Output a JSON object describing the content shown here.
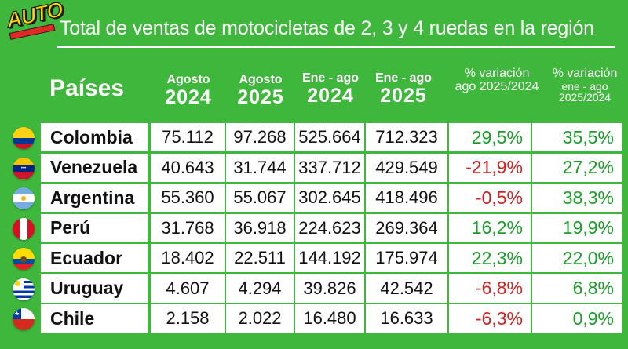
{
  "logo": {
    "text": "AUTO"
  },
  "title": "Total de ventas de motocicletas de 2, 3 y 4 ruedas en la región",
  "columns": {
    "paises": "Países",
    "agosto2024": {
      "line1": "Agosto",
      "line2": "2024"
    },
    "agosto2025": {
      "line1": "Agosto",
      "line2": "2025"
    },
    "eneago2024": {
      "line1": "Ene - ago",
      "line2": "2024"
    },
    "eneago2025": {
      "line1": "Ene - ago",
      "line2": "2025"
    },
    "var_ago": {
      "line1": "% variación",
      "line2": "ago 2025/2024"
    },
    "var_eneago": {
      "line1": "% variación",
      "line2": "ene - ago",
      "line3": "2025/2024"
    }
  },
  "colors": {
    "background": "#3fb63c",
    "positive": "#1b9e2a",
    "negative": "#d21f1f"
  },
  "chart_data": {
    "type": "table",
    "title": "Total de ventas de motocicletas de 2, 3 y 4 ruedas en la región",
    "headers": [
      "Países",
      "Agosto 2024",
      "Agosto 2025",
      "Ene - ago 2024",
      "Ene - ago 2025",
      "% variación ago 2025/2024",
      "% variación ene - ago 2025/2024"
    ],
    "rows": [
      {
        "pais": "Colombia",
        "flag": "colombia-flag",
        "ago2024": "75.112",
        "ago2025": "97.268",
        "ene2024": "525.664",
        "ene2025": "712.323",
        "var_ago": "29,5%",
        "var_ene": "35,5%"
      },
      {
        "pais": "Venezuela",
        "flag": "venezuela-flag",
        "ago2024": "40.643",
        "ago2025": "31.744",
        "ene2024": "337.712",
        "ene2025": "429.549",
        "var_ago": "-21,9%",
        "var_ene": "27,2%"
      },
      {
        "pais": "Argentina",
        "flag": "argentina-flag",
        "ago2024": "55.360",
        "ago2025": "55.067",
        "ene2024": "302.645",
        "ene2025": "418.496",
        "var_ago": "-0,5%",
        "var_ene": "38,3%"
      },
      {
        "pais": "Perú",
        "flag": "peru-flag",
        "ago2024": "31.768",
        "ago2025": "36.918",
        "ene2024": "224.623",
        "ene2025": "269.364",
        "var_ago": "16,2%",
        "var_ene": "19,9%"
      },
      {
        "pais": "Ecuador",
        "flag": "ecuador-flag",
        "ago2024": "18.402",
        "ago2025": "22.511",
        "ene2024": "144.192",
        "ene2025": "175.974",
        "var_ago": "22,3%",
        "var_ene": "22,0%"
      },
      {
        "pais": "Uruguay",
        "flag": "uruguay-flag",
        "ago2024": "4.607",
        "ago2025": "4.294",
        "ene2024": "39.826",
        "ene2025": "42.542",
        "var_ago": "-6,8%",
        "var_ene": "6,8%"
      },
      {
        "pais": "Chile",
        "flag": "chile-flag",
        "ago2024": "2.158",
        "ago2025": "2.022",
        "ene2024": "16.480",
        "ene2025": "16.633",
        "var_ago": "-6,3%",
        "var_ene": "0,9%"
      }
    ]
  }
}
